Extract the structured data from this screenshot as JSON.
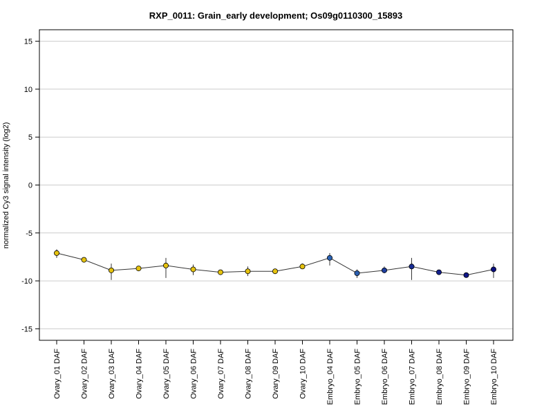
{
  "chart_data": {
    "type": "line",
    "title": "RXP_0011: Grain_early development; Os09g0110300_15893",
    "xlabel": "",
    "ylabel": "normalized Cy3 signal intensity (log2)",
    "ylim": [
      -16.2,
      16.2
    ],
    "yticks": [
      -15,
      -10,
      -5,
      0,
      5,
      10,
      15
    ],
    "grid": true,
    "categories": [
      "Ovary_01 DAF",
      "Ovary_02 DAF",
      "Ovary_03 DAF",
      "Ovary_04 DAF",
      "Ovary_05 DAF",
      "Ovary_06 DAF",
      "Ovary_07 DAF",
      "Ovary_08 DAF",
      "Ovary_09 DAF",
      "Ovary_10 DAF",
      "Embryo_04 DAF",
      "Embryo_05 DAF",
      "Embryo_06 DAF",
      "Embryo_07 DAF",
      "Embryo_08 DAF",
      "Embryo_09 DAF",
      "Embryo_10 DAF"
    ],
    "values": [
      -7.1,
      -7.8,
      -8.9,
      -8.7,
      -8.4,
      -8.8,
      -9.1,
      -9.0,
      -9.0,
      -8.5,
      -7.6,
      -9.2,
      -8.9,
      -8.5,
      -9.1,
      -9.4,
      -8.8
    ],
    "err_low": [
      -7.6,
      -7.9,
      -9.9,
      -8.8,
      -9.7,
      -9.4,
      -9.2,
      -9.5,
      -9.1,
      -8.7,
      -8.4,
      -9.7,
      -9.2,
      -9.9,
      -9.2,
      -9.5,
      -9.7
    ],
    "err_high": [
      -6.7,
      -7.6,
      -8.2,
      -8.5,
      -7.6,
      -8.3,
      -8.9,
      -8.5,
      -8.9,
      -8.2,
      -7.1,
      -8.8,
      -8.5,
      -7.6,
      -8.9,
      -9.3,
      -8.2
    ],
    "point_colors": [
      "#E5C20F",
      "#E5C20F",
      "#E5C20F",
      "#E5C20F",
      "#E5C20F",
      "#E5C20F",
      "#E5C20F",
      "#E5C20F",
      "#E5C20F",
      "#E5C20F",
      "#2B63B5",
      "#2B5FB0",
      "#1F3FA0",
      "#182C95",
      "#13208C",
      "#0F1688",
      "#0A0F80"
    ],
    "line_color": "#333333",
    "grid_color": "#cccccc"
  }
}
